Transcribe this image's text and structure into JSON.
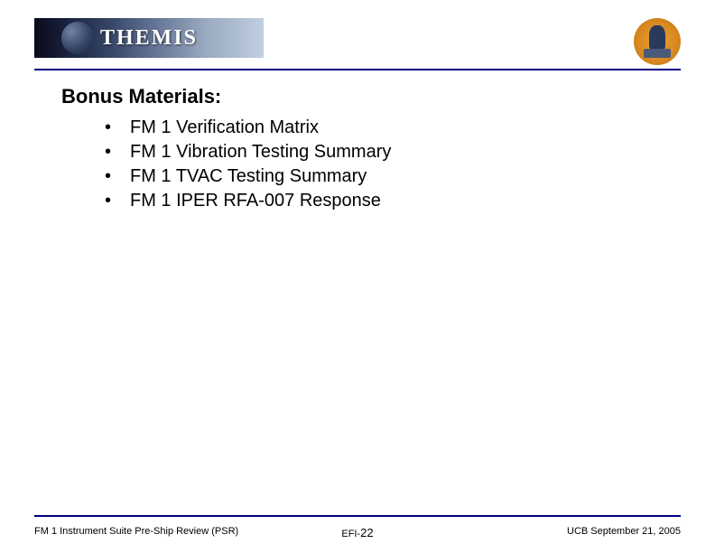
{
  "header": {
    "banner_text": "THEMIS"
  },
  "content": {
    "title": "Bonus Materials:",
    "bullets": [
      "FM 1 Verification Matrix",
      "FM 1 Vibration Testing Summary",
      "FM 1 TVAC Testing Summary",
      "FM 1 IPER RFA-007 Response"
    ]
  },
  "footer": {
    "left": "FM 1 Instrument Suite Pre-Ship Review (PSR)",
    "center_prefix": "EFI-",
    "center_page": "22",
    "right": "UCB September 21, 2005"
  },
  "colors": {
    "rule": "#000080",
    "text": "#000000",
    "background": "#ffffff"
  }
}
